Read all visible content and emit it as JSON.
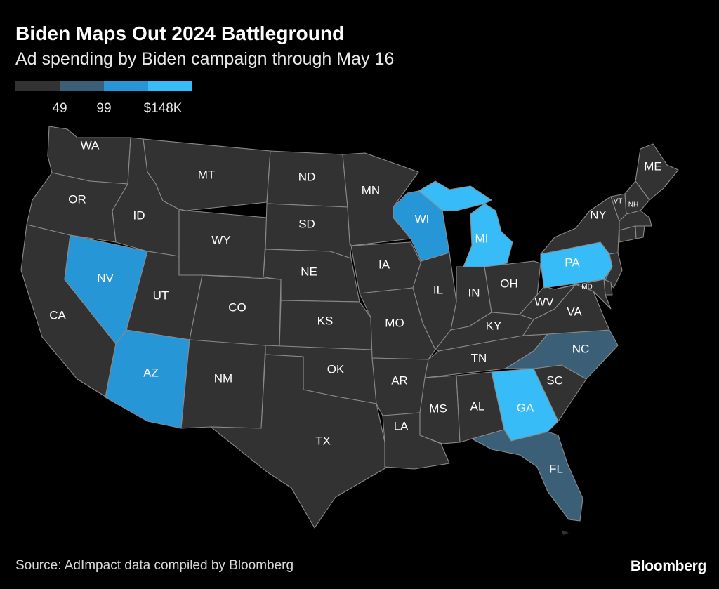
{
  "title": "Biden Maps Out 2024 Battleground",
  "subtitle": "Ad spending by Biden campaign through May 16",
  "legend": {
    "colors": [
      "#323232",
      "#3c5f78",
      "#2696d6",
      "#38bcf8"
    ],
    "labels": [
      "49",
      "99",
      "$148K"
    ]
  },
  "map_data": {
    "type": "choropleth",
    "region": "Contiguous United States",
    "tier_colors": {
      "0": "#323232",
      "1": "#3c5f78",
      "2": "#2696d6",
      "3": "#38bcf8"
    },
    "states": [
      {
        "abbr": "WA",
        "tier": 0
      },
      {
        "abbr": "OR",
        "tier": 0
      },
      {
        "abbr": "CA",
        "tier": 0
      },
      {
        "abbr": "ID",
        "tier": 0
      },
      {
        "abbr": "NV",
        "tier": 2
      },
      {
        "abbr": "UT",
        "tier": 0
      },
      {
        "abbr": "AZ",
        "tier": 2
      },
      {
        "abbr": "MT",
        "tier": 0
      },
      {
        "abbr": "WY",
        "tier": 0
      },
      {
        "abbr": "CO",
        "tier": 0
      },
      {
        "abbr": "NM",
        "tier": 0
      },
      {
        "abbr": "ND",
        "tier": 0
      },
      {
        "abbr": "SD",
        "tier": 0
      },
      {
        "abbr": "NE",
        "tier": 0
      },
      {
        "abbr": "KS",
        "tier": 0
      },
      {
        "abbr": "OK",
        "tier": 0
      },
      {
        "abbr": "TX",
        "tier": 0
      },
      {
        "abbr": "MN",
        "tier": 0
      },
      {
        "abbr": "IA",
        "tier": 0
      },
      {
        "abbr": "MO",
        "tier": 0
      },
      {
        "abbr": "AR",
        "tier": 0
      },
      {
        "abbr": "LA",
        "tier": 0
      },
      {
        "abbr": "WI",
        "tier": 2
      },
      {
        "abbr": "IL",
        "tier": 0
      },
      {
        "abbr": "MI",
        "tier": 3
      },
      {
        "abbr": "IN",
        "tier": 0
      },
      {
        "abbr": "OH",
        "tier": 0
      },
      {
        "abbr": "KY",
        "tier": 0
      },
      {
        "abbr": "TN",
        "tier": 0
      },
      {
        "abbr": "MS",
        "tier": 0
      },
      {
        "abbr": "AL",
        "tier": 0
      },
      {
        "abbr": "GA",
        "tier": 3
      },
      {
        "abbr": "FL",
        "tier": 1
      },
      {
        "abbr": "SC",
        "tier": 0
      },
      {
        "abbr": "NC",
        "tier": 1
      },
      {
        "abbr": "VA",
        "tier": 0
      },
      {
        "abbr": "WV",
        "tier": 0
      },
      {
        "abbr": "PA",
        "tier": 3
      },
      {
        "abbr": "NY",
        "tier": 0
      },
      {
        "abbr": "ME",
        "tier": 0
      },
      {
        "abbr": "VT",
        "tier": 0
      },
      {
        "abbr": "NH",
        "tier": 0
      },
      {
        "abbr": "MD",
        "tier": 0
      },
      {
        "abbr": "MA",
        "tier": 0
      },
      {
        "abbr": "CT",
        "tier": 0
      },
      {
        "abbr": "RI",
        "tier": 0
      },
      {
        "abbr": "NJ",
        "tier": 0
      },
      {
        "abbr": "DE",
        "tier": 0
      }
    ]
  },
  "source": "Source: AdImpact data compiled by Bloomberg",
  "logo": "Bloomberg"
}
